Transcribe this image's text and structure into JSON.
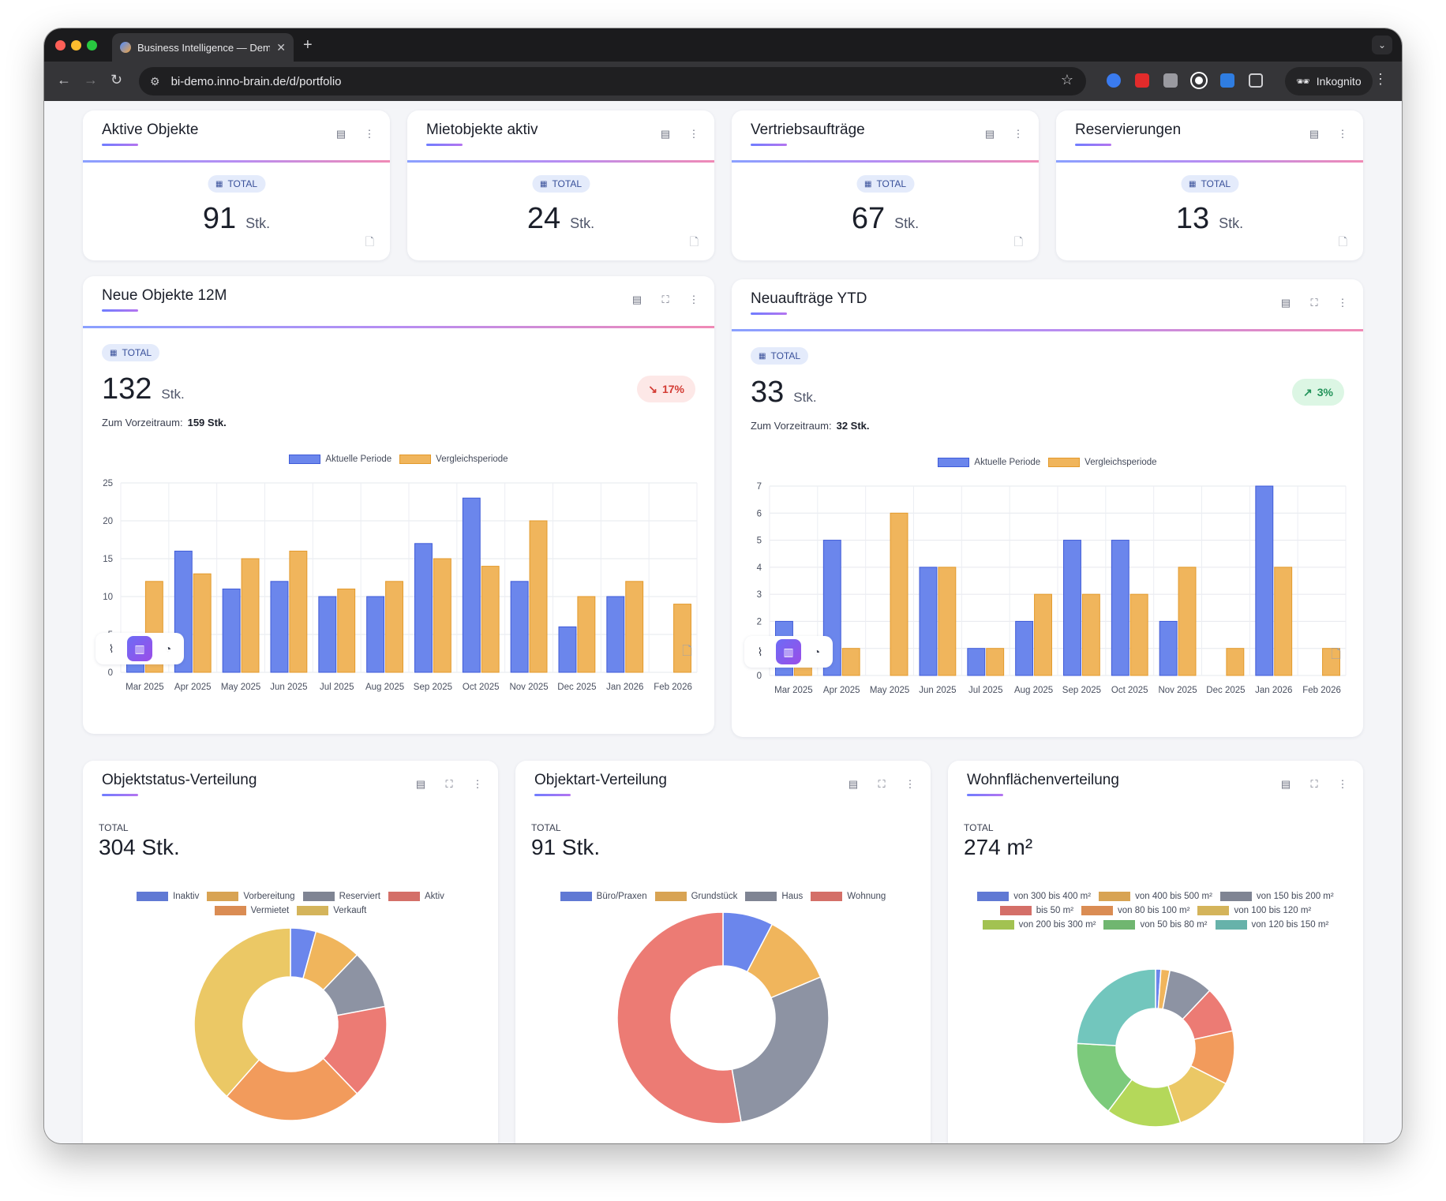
{
  "browser": {
    "tab_title": "Business Intelligence — Demo",
    "url": "bi-demo.inno-brain.de/d/portfolio",
    "incognito_label": "Inkognito"
  },
  "kpis": [
    {
      "title": "Aktive Objekte",
      "badge": "TOTAL",
      "value": "91",
      "unit": "Stk."
    },
    {
      "title": "Mietobjekte aktiv",
      "badge": "TOTAL",
      "value": "24",
      "unit": "Stk."
    },
    {
      "title": "Vertriebsaufträge",
      "badge": "TOTAL",
      "value": "67",
      "unit": "Stk."
    },
    {
      "title": "Reservierungen",
      "badge": "TOTAL",
      "value": "13",
      "unit": "Stk."
    }
  ],
  "bar_cards": [
    {
      "title": "Neue Objekte 12M",
      "badge": "TOTAL",
      "value": "132",
      "unit": "Stk.",
      "trend": "17%",
      "trend_dir": "down",
      "prev_label": "Zum Vorzeitraum:",
      "prev_value": "159 Stk."
    },
    {
      "title": "Neuaufträge YTD",
      "badge": "TOTAL",
      "value": "33",
      "unit": "Stk.",
      "trend": "3%",
      "trend_dir": "up",
      "prev_label": "Zum Vorzeitraum:",
      "prev_value": "32 Stk."
    }
  ],
  "dist_cards": [
    {
      "title": "Objektstatus-Verteilung",
      "total_label": "TOTAL",
      "total": "304 Stk."
    },
    {
      "title": "Objektart-Verteilung",
      "total_label": "TOTAL",
      "total": "91 Stk."
    },
    {
      "title": "Wohnflächenverteilung",
      "total_label": "TOTAL",
      "total": "274 m²"
    }
  ],
  "colors": {
    "blue": "#6b86ec",
    "blue_border": "#3f5bd8",
    "orange": "#f0b55c",
    "orange_border": "#e39a2c",
    "accent": "#7c5cf0"
  },
  "chart_data": [
    {
      "type": "bar",
      "categories": [
        "Mar 2025",
        "Apr 2025",
        "May 2025",
        "Jun 2025",
        "Jul 2025",
        "Aug 2025",
        "Sep 2025",
        "Oct 2025",
        "Nov 2025",
        "Dec 2025",
        "Jan 2026",
        "Feb 2026"
      ],
      "series": [
        {
          "name": "Aktuelle Periode",
          "values": [
            5,
            16,
            11,
            12,
            10,
            10,
            17,
            23,
            12,
            6,
            10,
            0
          ]
        },
        {
          "name": "Vergleichsperiode",
          "values": [
            12,
            13,
            15,
            16,
            11,
            12,
            15,
            14,
            20,
            10,
            12,
            9
          ]
        }
      ],
      "ylim": [
        0,
        25
      ],
      "yticks": [
        0,
        5,
        10,
        15,
        20,
        25
      ],
      "legend": "top",
      "grid": true
    },
    {
      "type": "bar",
      "categories": [
        "Mar 2025",
        "Apr 2025",
        "May 2025",
        "Jun 2025",
        "Jul 2025",
        "Aug 2025",
        "Sep 2025",
        "Oct 2025",
        "Nov 2025",
        "Dec 2025",
        "Jan 2026",
        "Feb 2026"
      ],
      "series": [
        {
          "name": "Aktuelle Periode",
          "values": [
            2,
            5,
            0,
            4,
            1,
            2,
            5,
            5,
            2,
            0,
            7,
            0
          ]
        },
        {
          "name": "Vergleichsperiode",
          "values": [
            1,
            1,
            6,
            4,
            1,
            3,
            3,
            3,
            4,
            1,
            4,
            1
          ]
        }
      ],
      "ylim": [
        0,
        7
      ],
      "yticks": [
        0,
        1,
        2,
        3,
        4,
        5,
        6,
        7
      ],
      "legend": "top",
      "grid": true
    },
    {
      "type": "pie",
      "donut": true,
      "labels": [
        "Inaktiv",
        "Vorbereitung",
        "Reserviert",
        "Aktiv",
        "Vermietet",
        "Verkauft"
      ],
      "values": [
        13,
        24,
        30,
        48,
        72,
        117
      ],
      "colors": [
        "#6b86ec",
        "#f0b55c",
        "#8d93a3",
        "#ec7b74",
        "#f29b5c",
        "#ebc865"
      ],
      "legend": "top"
    },
    {
      "type": "pie",
      "donut": true,
      "labels": [
        "Büro/Praxen",
        "Grundstück",
        "Haus",
        "Wohnung"
      ],
      "values": [
        7,
        10,
        26,
        48
      ],
      "colors": [
        "#6b86ec",
        "#f0b55c",
        "#8d93a3",
        "#ec7b74"
      ],
      "legend": "top"
    },
    {
      "type": "pie",
      "donut": true,
      "labels": [
        "von 300 bis 400 m²",
        "von 400 bis 500 m²",
        "von 150 bis 200 m²",
        "bis 50 m²",
        "von 80 bis 100 m²",
        "von 100 bis 120 m²",
        "von 200 bis 300 m²",
        "von 50 bis 80 m²",
        "von 120 bis 150 m²"
      ],
      "values": [
        3,
        5,
        25,
        26,
        30,
        34,
        42,
        43,
        66
      ],
      "colors": [
        "#6b86ec",
        "#f0b55c",
        "#8d93a3",
        "#ec7b74",
        "#f29b5c",
        "#ebc865",
        "#b4d85a",
        "#7cca7c",
        "#72c6bd"
      ],
      "legend": "top"
    }
  ]
}
